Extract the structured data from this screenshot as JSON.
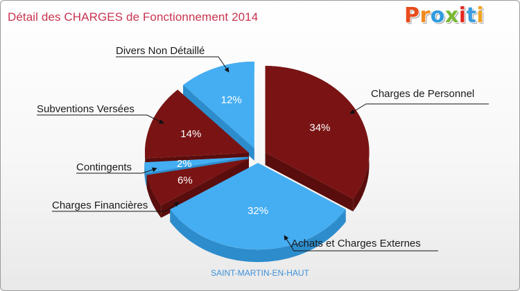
{
  "header": {
    "title": "Détail des CHARGES de Fonctionnement 2014",
    "logo_letters": [
      "P",
      "r",
      "o",
      "x",
      "i",
      "t",
      "i"
    ],
    "logo_colors": [
      "#e84b1c",
      "#f08a1e",
      "#2f9be0",
      "#79b833",
      "#e3271f",
      "#3b9ce0",
      "#f0a21e"
    ]
  },
  "chart_data": {
    "type": "pie",
    "title": "Détail des CHARGES de Fonctionnement 2014",
    "subtitle": "SAINT-MARTIN-EN-HAUT",
    "slices": [
      {
        "label": "Charges de Personnel",
        "pct_label": "34%",
        "value": 34,
        "color": "#7a1414",
        "side": "#5a0d0d",
        "exploded": true
      },
      {
        "label": "Achats et Charges Externes",
        "pct_label": "32%",
        "value": 32,
        "color": "#45aef2",
        "side": "#2d8ccc",
        "exploded": true
      },
      {
        "label": "Charges Financières",
        "pct_label": "6%",
        "value": 6,
        "color": "#7a1414",
        "side": "#5a0d0d",
        "exploded": true
      },
      {
        "label": "Contingents",
        "pct_label": "2%",
        "value": 2,
        "color": "#45aef2",
        "side": "#2d8ccc",
        "exploded": true
      },
      {
        "label": "Subventions Versées",
        "pct_label": "14%",
        "value": 14,
        "color": "#7a1414",
        "side": "#5a0d0d",
        "exploded": true
      },
      {
        "label": "Divers Non Détaillé",
        "pct_label": "12%",
        "value": 12,
        "color": "#45aef2",
        "side": "#2d8ccc",
        "exploded": true
      }
    ]
  }
}
